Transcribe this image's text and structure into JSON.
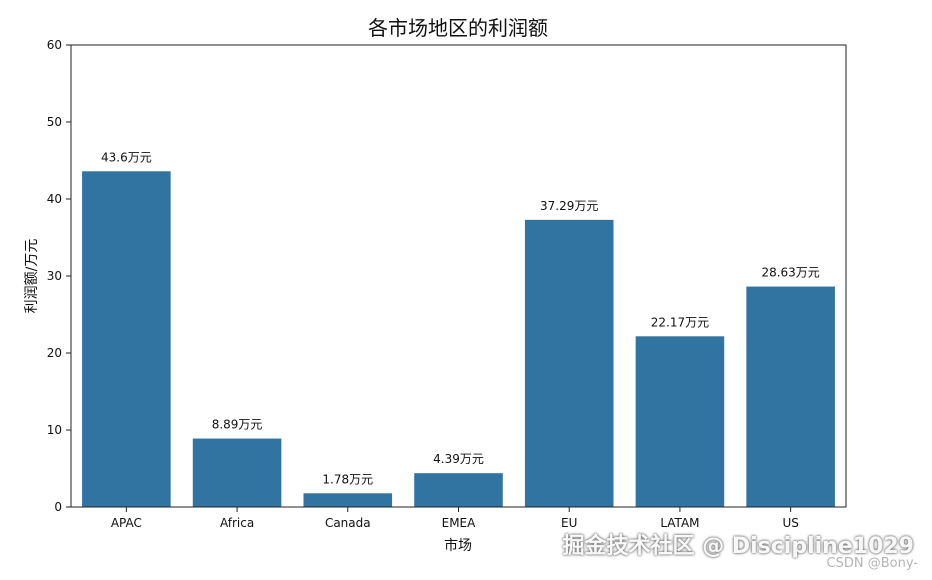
{
  "chart_data": {
    "type": "bar",
    "title": "各市场地区的利润额",
    "xlabel": "市场",
    "ylabel": "利润额/万元",
    "categories": [
      "APAC",
      "Africa",
      "Canada",
      "EMEA",
      "EU",
      "LATAM",
      "US"
    ],
    "values": [
      43.6,
      8.89,
      1.78,
      4.39,
      37.29,
      22.17,
      28.63
    ],
    "value_labels": [
      "43.6万元",
      "8.89万元",
      "1.78万元",
      "4.39万元",
      "37.29万元",
      "22.17万元",
      "28.63万元"
    ],
    "ylim": [
      0,
      60
    ],
    "yticks": [
      0,
      10,
      20,
      30,
      40,
      50,
      60
    ],
    "grid": false,
    "bar_color": "#3274a1"
  },
  "watermark": "掘金技术社区 @ Discipline1029",
  "credit": "CSDN @Bony-"
}
